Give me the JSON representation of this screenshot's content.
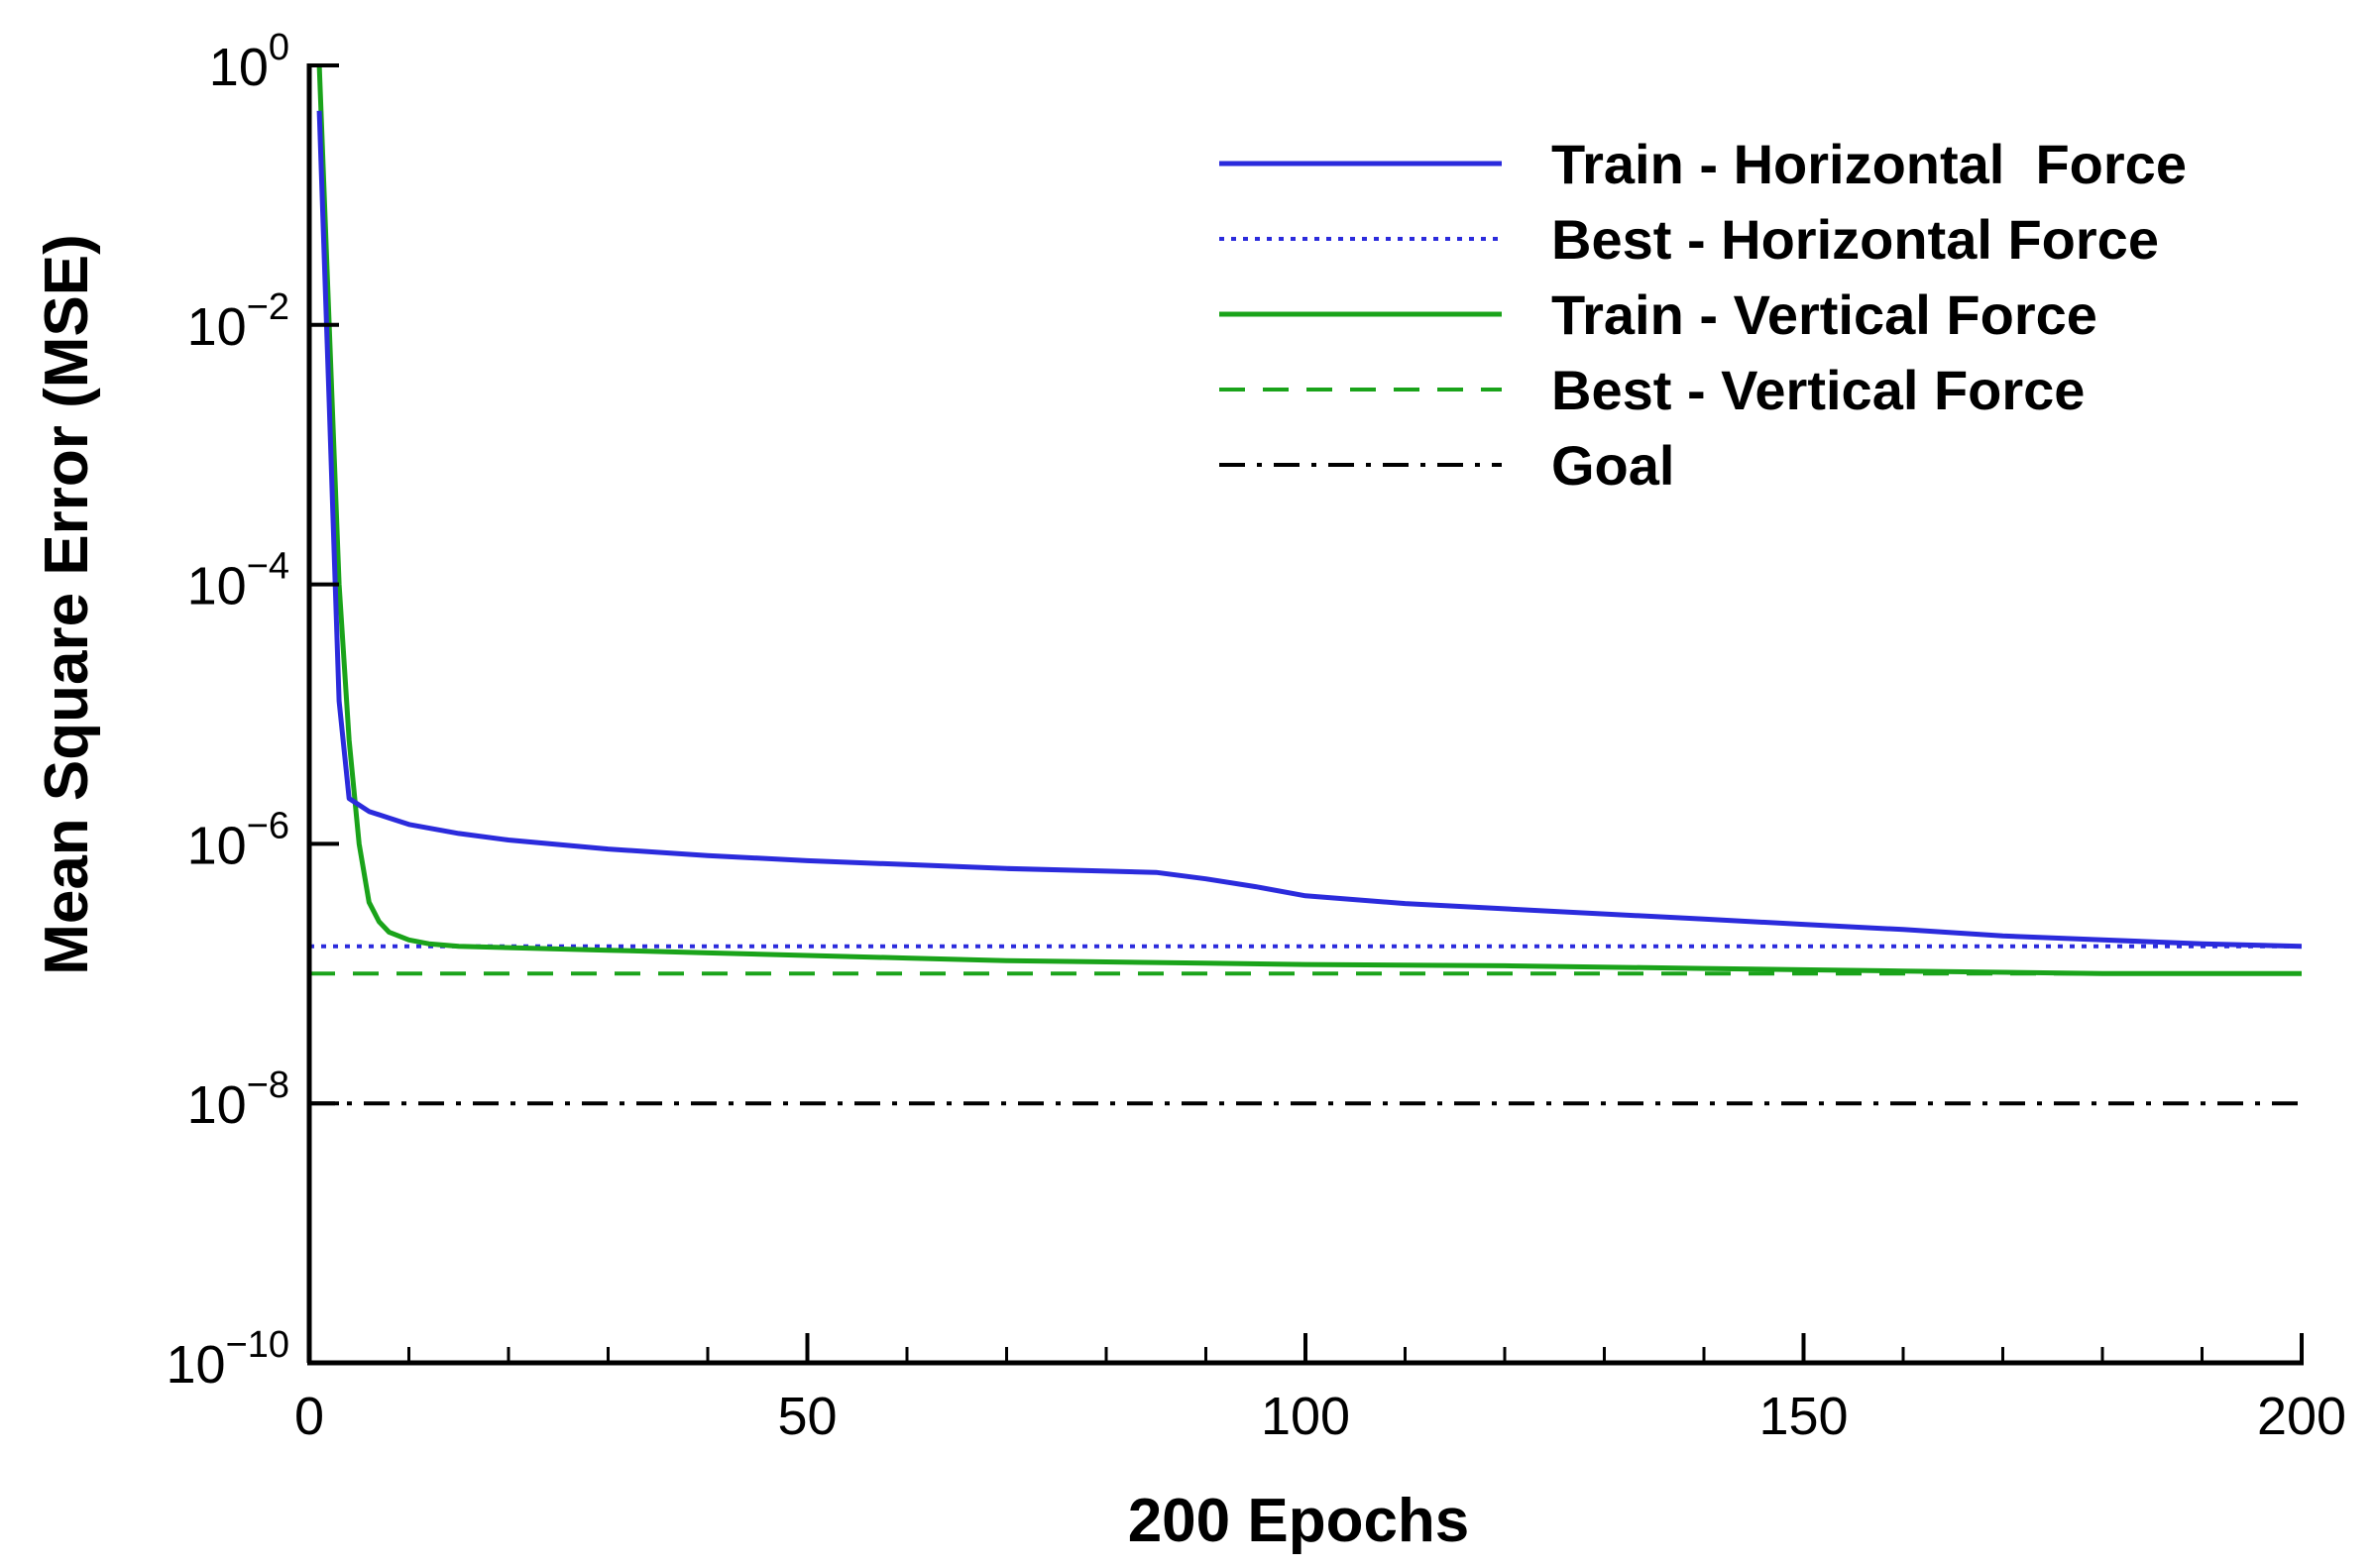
{
  "chart_data": {
    "type": "line",
    "title": "",
    "xlabel": "200 Epochs",
    "ylabel": "Mean Square Error (MSE)",
    "xlim": [
      0,
      200
    ],
    "ylim_exponent": [
      -10,
      0
    ],
    "yscale": "log",
    "grid": false,
    "x_ticks": [
      {
        "value": 0,
        "label": "0"
      },
      {
        "value": 50,
        "label": "50"
      },
      {
        "value": 100,
        "label": "100"
      },
      {
        "value": 150,
        "label": "150"
      },
      {
        "value": 200,
        "label": "200"
      }
    ],
    "y_ticks": [
      {
        "exponent": 0,
        "base": "10",
        "exp_label": "0"
      },
      {
        "exponent": -2,
        "base": "10",
        "exp_label": "−2"
      },
      {
        "exponent": -4,
        "base": "10",
        "exp_label": "−4"
      },
      {
        "exponent": -6,
        "base": "10",
        "exp_label": "−6"
      },
      {
        "exponent": -8,
        "base": "10",
        "exp_label": "−8"
      },
      {
        "exponent": -10,
        "base": "10",
        "exp_label": "−10"
      }
    ],
    "legend_position": "top-right",
    "series": [
      {
        "name": "Train - Horizontal  Force",
        "color": "#2b2bdc",
        "style": "solid",
        "x": [
          1,
          2,
          3,
          4,
          6,
          8,
          10,
          15,
          20,
          30,
          40,
          50,
          60,
          70,
          80,
          85,
          90,
          95,
          100,
          110,
          120,
          130,
          140,
          150,
          160,
          170,
          180,
          190,
          200
        ],
        "y_exponent": [
          -0.35,
          -2.6,
          -4.9,
          -5.65,
          -5.75,
          -5.8,
          -5.85,
          -5.92,
          -5.97,
          -6.04,
          -6.09,
          -6.13,
          -6.16,
          -6.19,
          -6.21,
          -6.22,
          -6.27,
          -6.33,
          -6.4,
          -6.46,
          -6.5,
          -6.54,
          -6.58,
          -6.62,
          -6.66,
          -6.71,
          -6.74,
          -6.77,
          -6.79
        ]
      },
      {
        "name": "Best - Horizontal Force",
        "color": "#2b2bdc",
        "style": "dotted",
        "x": [
          0,
          200
        ],
        "y_exponent": [
          -6.79,
          -6.79
        ]
      },
      {
        "name": "Train - Vertical Force",
        "color": "#1aa31a",
        "style": "solid",
        "x": [
          1,
          2,
          3,
          4,
          5,
          6,
          7,
          8,
          10,
          12,
          15,
          20,
          30,
          40,
          50,
          60,
          70,
          80,
          90,
          100,
          120,
          140,
          160,
          180,
          200
        ],
        "y_exponent": [
          0.0,
          -2.0,
          -4.0,
          -5.2,
          -6.0,
          -6.45,
          -6.6,
          -6.68,
          -6.74,
          -6.77,
          -6.79,
          -6.8,
          -6.82,
          -6.84,
          -6.86,
          -6.88,
          -6.9,
          -6.91,
          -6.92,
          -6.93,
          -6.94,
          -6.96,
          -6.98,
          -7.0,
          -7.0
        ]
      },
      {
        "name": "Best - Vertical Force",
        "color": "#1aa31a",
        "style": "dashed",
        "x": [
          0,
          200
        ],
        "y_exponent": [
          -7.0,
          -7.0
        ]
      },
      {
        "name": "Goal",
        "color": "#000000",
        "style": "dashdot",
        "x": [
          0,
          200
        ],
        "y_exponent": [
          -8.0,
          -8.0
        ]
      }
    ]
  }
}
